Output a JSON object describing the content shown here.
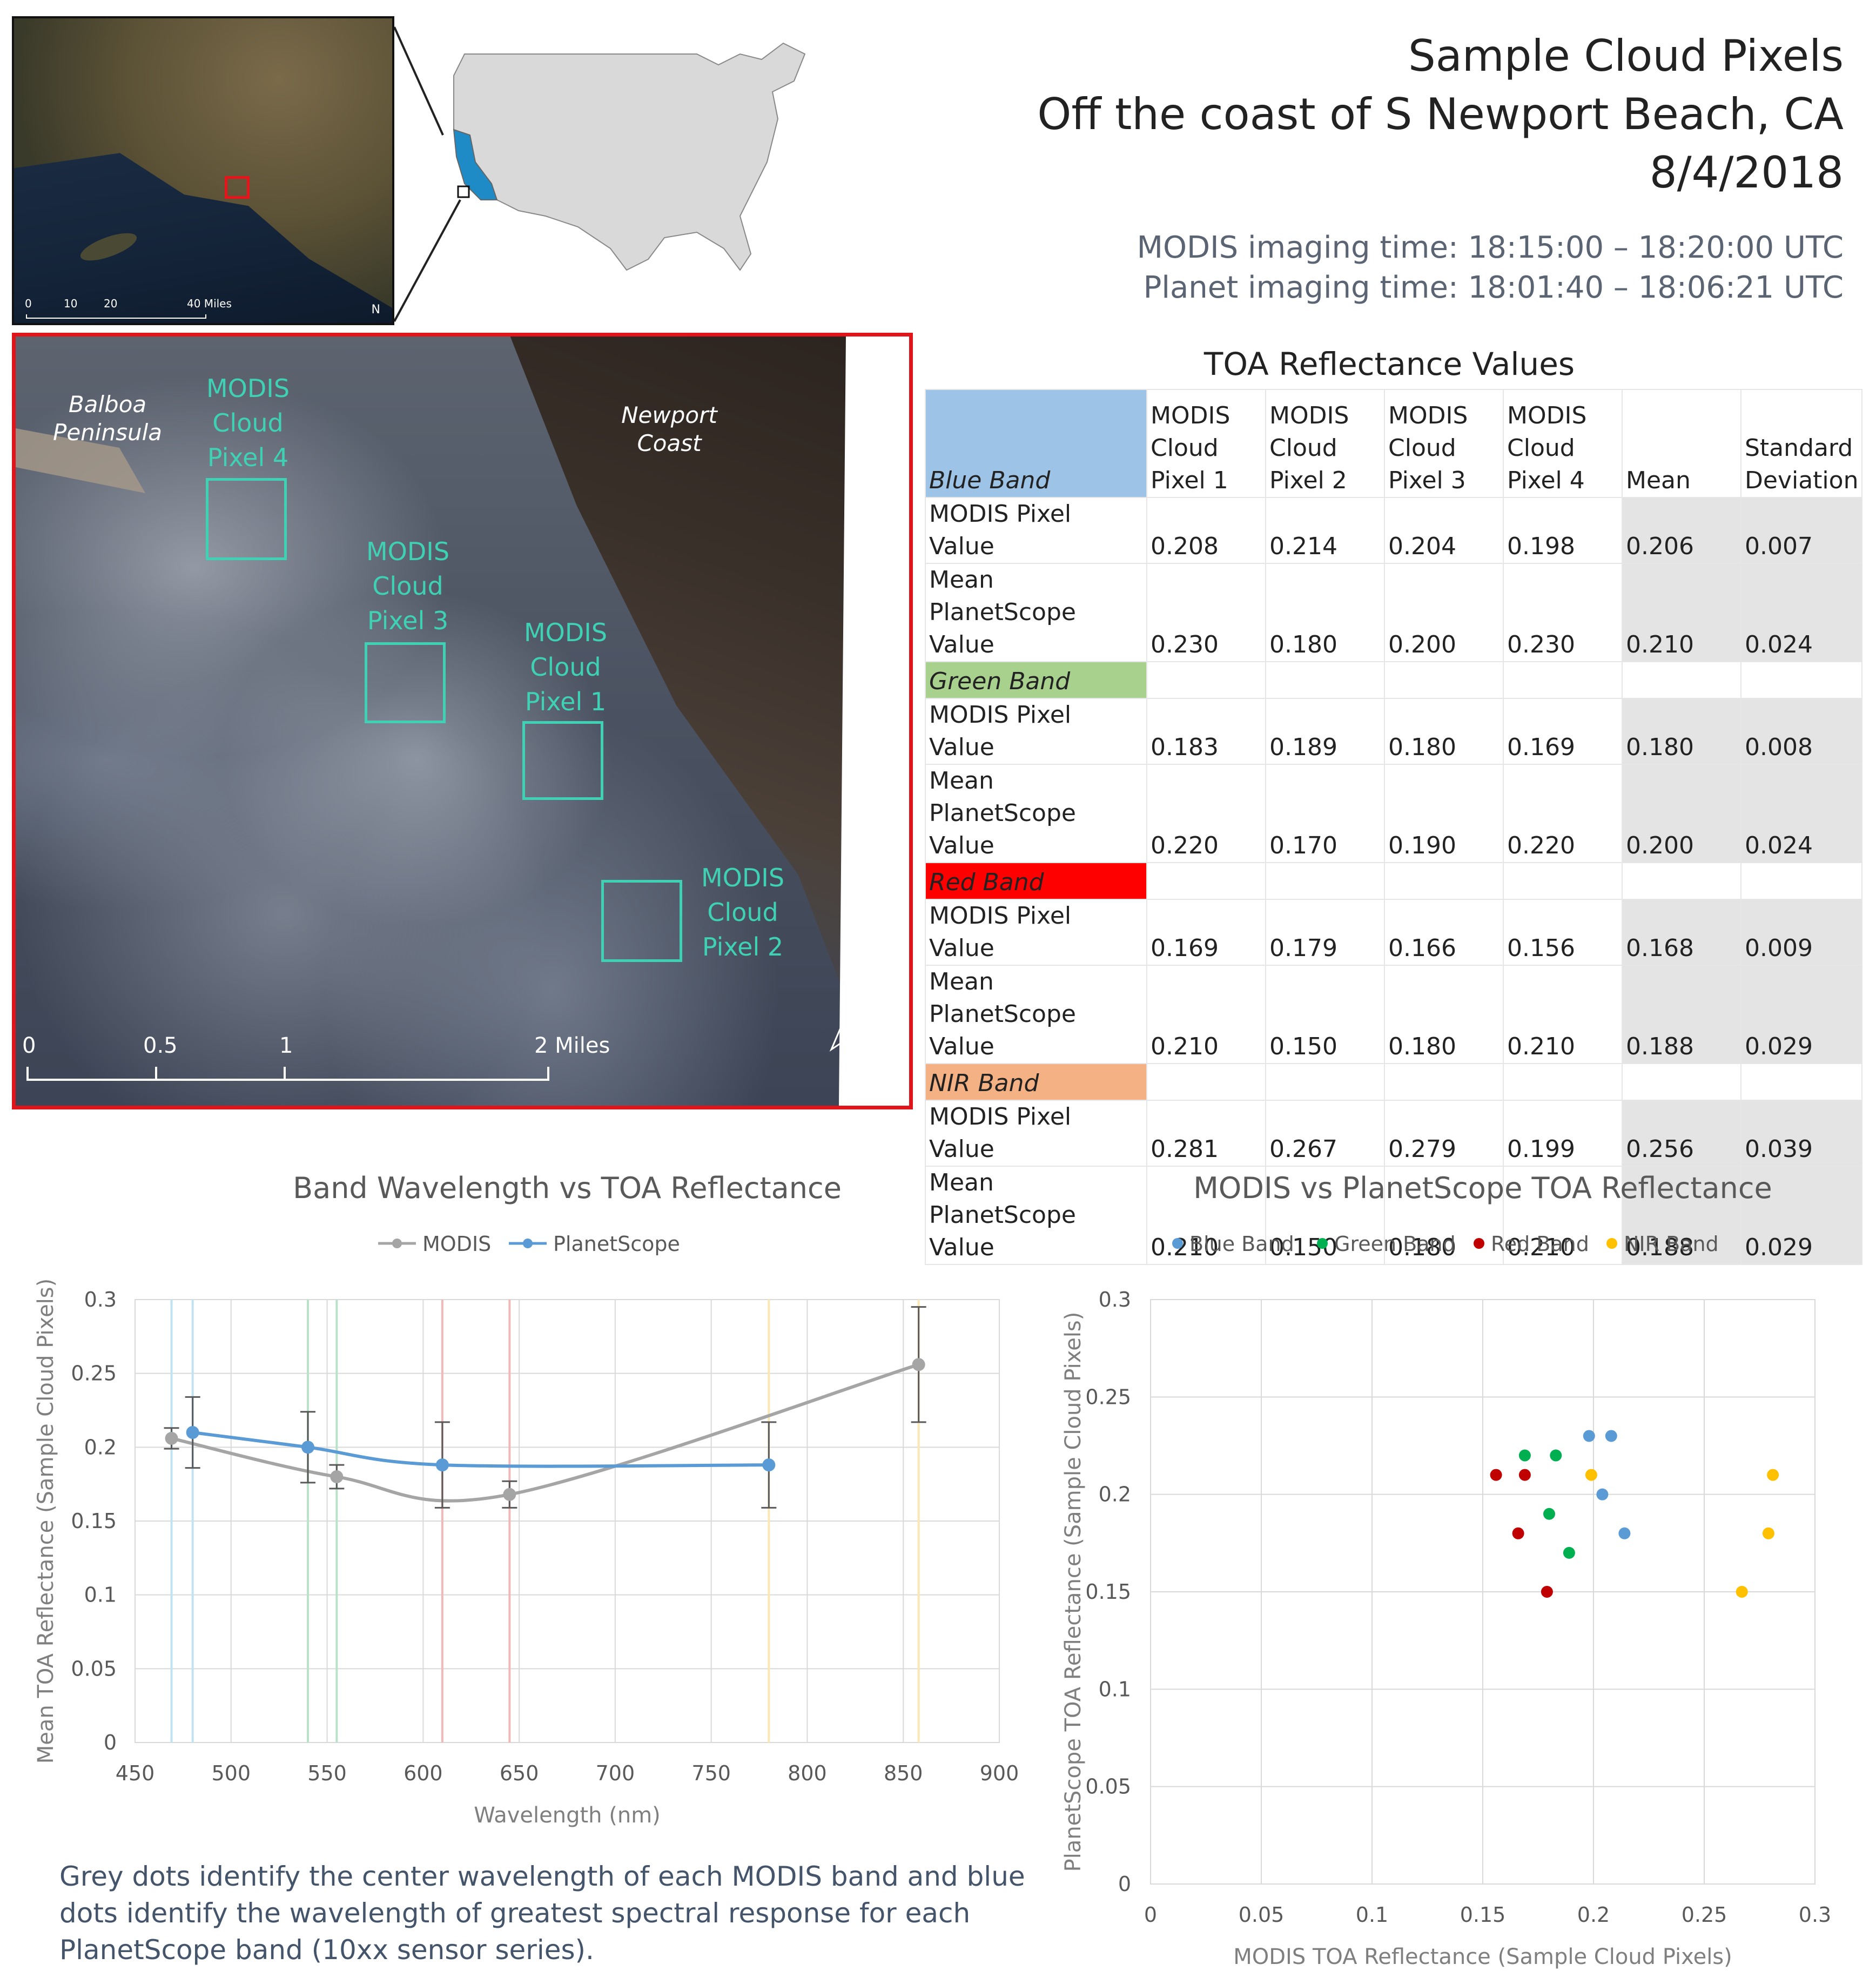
{
  "header": {
    "title_line1": "Sample Cloud Pixels",
    "title_line2": "Off the coast of S Newport Beach, CA",
    "title_line3": "8/4/2018",
    "modis_time": "MODIS imaging time: 18:15:00 – 18:20:00 UTC",
    "planet_time": "Planet imaging time: 18:01:40 – 18:06:21 UTC"
  },
  "inset_map": {
    "scale_labels": [
      "0",
      "10",
      "20",
      "40 Miles"
    ],
    "north_label": "N"
  },
  "satellite": {
    "places": {
      "balboa": "Balboa\nPeninsula",
      "newport": "Newport\nCoast"
    },
    "pixels": [
      {
        "label_l1": "MODIS",
        "label_l2": "Cloud",
        "label_l3": "Pixel 4"
      },
      {
        "label_l1": "MODIS",
        "label_l2": "Cloud",
        "label_l3": "Pixel 3"
      },
      {
        "label_l1": "MODIS",
        "label_l2": "Cloud",
        "label_l3": "Pixel 1"
      },
      {
        "label_l1": "MODIS",
        "label_l2": "Cloud",
        "label_l3": "Pixel 2"
      }
    ],
    "scale_labels": [
      "0",
      "0.5",
      "1",
      "2 Miles"
    ],
    "north_label": "N"
  },
  "table": {
    "title": "TOA Reflectance Values",
    "headers": [
      "MODIS Cloud Pixel 1",
      "MODIS Cloud Pixel 2",
      "MODIS Cloud Pixel 3",
      "MODIS Cloud Pixel 4",
      "Mean",
      "Standard Deviation"
    ],
    "row_labels": {
      "modis": "MODIS Pixel Value",
      "planet": "Mean PlanetScope Value"
    },
    "bands": [
      {
        "name": "Blue Band",
        "color": "#9dc3e6",
        "modis": [
          "0.208",
          "0.214",
          "0.204",
          "0.198",
          "0.206",
          "0.007"
        ],
        "planet": [
          "0.230",
          "0.180",
          "0.200",
          "0.230",
          "0.210",
          "0.024"
        ]
      },
      {
        "name": "Green Band",
        "color": "#a9d18e",
        "modis": [
          "0.183",
          "0.189",
          "0.180",
          "0.169",
          "0.180",
          "0.008"
        ],
        "planet": [
          "0.220",
          "0.170",
          "0.190",
          "0.220",
          "0.200",
          "0.024"
        ]
      },
      {
        "name": "Red Band",
        "color": "#ff0000",
        "modis": [
          "0.169",
          "0.179",
          "0.166",
          "0.156",
          "0.168",
          "0.009"
        ],
        "planet": [
          "0.210",
          "0.150",
          "0.180",
          "0.210",
          "0.188",
          "0.029"
        ]
      },
      {
        "name": "NIR Band",
        "color": "#f4b183",
        "modis": [
          "0.281",
          "0.267",
          "0.279",
          "0.199",
          "0.256",
          "0.039"
        ],
        "planet": [
          "0.210",
          "0.150",
          "0.180",
          "0.210",
          "0.188",
          "0.029"
        ]
      }
    ]
  },
  "chart_data": [
    {
      "type": "line",
      "title": "Band Wavelength vs TOA Reflectance",
      "xlabel": "Wavelength (nm)",
      "ylabel": "Mean TOA Reflectance (Sample Cloud Pixels)",
      "xlim": [
        450,
        900
      ],
      "ylim": [
        0,
        0.3
      ],
      "xticks": [
        "450",
        "500",
        "550",
        "600",
        "650",
        "700",
        "750",
        "800",
        "850",
        "900"
      ],
      "yticks": [
        "0",
        "0.05",
        "0.1",
        "0.15",
        "0.2",
        "0.25",
        "0.3"
      ],
      "grid": true,
      "legend": "top",
      "series": [
        {
          "name": "MODIS",
          "color": "#a5a5a5",
          "x": [
            469,
            555,
            645,
            858
          ],
          "y": [
            0.206,
            0.18,
            0.168,
            0.256
          ],
          "err": [
            0.007,
            0.008,
            0.009,
            0.039
          ]
        },
        {
          "name": "PlanetScope",
          "color": "#5b9bd5",
          "x": [
            480,
            540,
            610,
            780
          ],
          "y": [
            0.21,
            0.2,
            0.188,
            0.188
          ],
          "err": [
            0.024,
            0.024,
            0.029,
            0.029
          ]
        }
      ],
      "band_lines": [
        {
          "x": 469,
          "color": "#bfe3f2"
        },
        {
          "x": 480,
          "color": "#bfe3f2"
        },
        {
          "x": 540,
          "color": "#b9e2c8"
        },
        {
          "x": 555,
          "color": "#b9e2c8"
        },
        {
          "x": 610,
          "color": "#f2b8b8"
        },
        {
          "x": 645,
          "color": "#f2b8b8"
        },
        {
          "x": 780,
          "color": "#fbe7b5"
        },
        {
          "x": 858,
          "color": "#fbe7b5"
        }
      ]
    },
    {
      "type": "scatter",
      "title": "MODIS vs PlanetScope TOA Reflectance",
      "xlabel": "MODIS TOA Reflectance (Sample Cloud Pixels)",
      "ylabel": "PlanetScope TOA Reflectance (Sample Cloud Pixels)",
      "xlim": [
        0,
        0.3
      ],
      "ylim": [
        0,
        0.3
      ],
      "xticks": [
        "0",
        "0.05",
        "0.1",
        "0.15",
        "0.2",
        "0.25",
        "0.3"
      ],
      "yticks": [
        "0",
        "0.05",
        "0.1",
        "0.15",
        "0.2",
        "0.25",
        "0.3"
      ],
      "grid": true,
      "legend": "top",
      "series": [
        {
          "name": "Blue Band",
          "color": "#5b9bd5",
          "x": [
            0.208,
            0.214,
            0.204,
            0.198
          ],
          "y": [
            0.23,
            0.18,
            0.2,
            0.23
          ]
        },
        {
          "name": "Green Band",
          "color": "#00b050",
          "x": [
            0.183,
            0.189,
            0.18,
            0.169
          ],
          "y": [
            0.22,
            0.17,
            0.19,
            0.22
          ]
        },
        {
          "name": "Red Band",
          "color": "#c00000",
          "x": [
            0.169,
            0.179,
            0.166,
            0.156
          ],
          "y": [
            0.21,
            0.15,
            0.18,
            0.21
          ]
        },
        {
          "name": "NIR Band",
          "color": "#ffc000",
          "x": [
            0.281,
            0.267,
            0.279,
            0.199
          ],
          "y": [
            0.21,
            0.15,
            0.18,
            0.21
          ]
        }
      ]
    }
  ],
  "caption": "Grey dots identify the center wavelength of each MODIS band and blue dots identify the wavelength of greatest spectral response for each PlanetScope band (10xx sensor series)."
}
